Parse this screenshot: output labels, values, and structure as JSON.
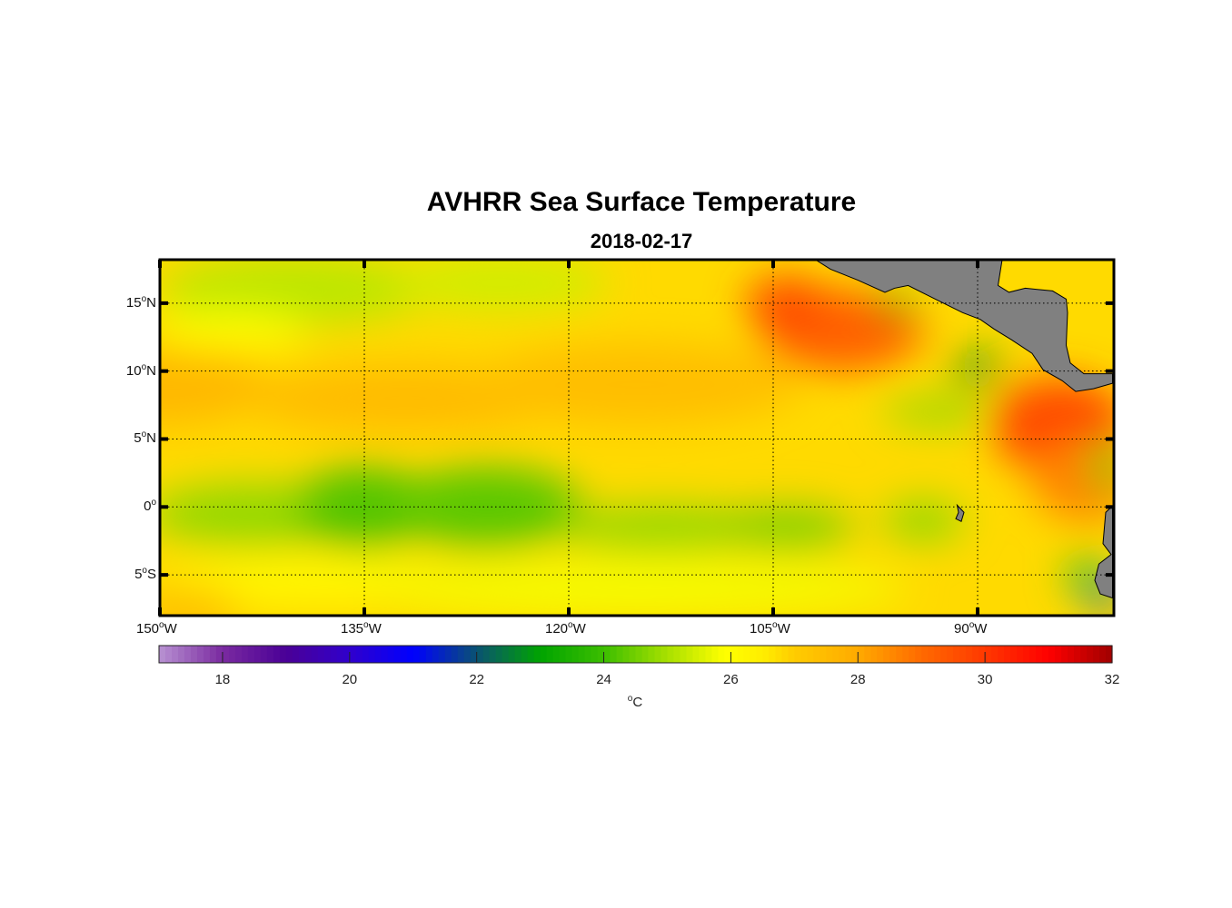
{
  "chart_data": {
    "type": "heatmap",
    "title": "AVHRR Sea Surface Temperature",
    "subtitle": "2018-02-17",
    "lon_range": [
      -150,
      -80
    ],
    "lat_range": [
      -8,
      18.2
    ],
    "lat_ticks": [
      {
        "value": 15,
        "num": "15",
        "hemi": "N"
      },
      {
        "value": 10,
        "num": "10",
        "hemi": "N"
      },
      {
        "value": 5,
        "num": "5",
        "hemi": "N"
      },
      {
        "value": 0,
        "num": "0",
        "hemi": ""
      },
      {
        "value": -5,
        "num": "5",
        "hemi": "S"
      }
    ],
    "lon_ticks": [
      {
        "value": -150,
        "num": "150",
        "hemi": "W"
      },
      {
        "value": -135,
        "num": "135",
        "hemi": "W"
      },
      {
        "value": -120,
        "num": "120",
        "hemi": "W"
      },
      {
        "value": -105,
        "num": "105",
        "hemi": "W"
      },
      {
        "value": -90,
        "num": "90",
        "hemi": "W"
      }
    ],
    "grid": true,
    "colorbar": {
      "range": [
        17,
        32
      ],
      "ticks": [
        "18",
        "20",
        "22",
        "24",
        "26",
        "28",
        "30",
        "32"
      ],
      "unit_symbol": "o",
      "unit": "C",
      "placement": "bottom"
    },
    "colormap": [
      [
        17,
        "#b892d2"
      ],
      [
        18,
        "#7a2aa0"
      ],
      [
        19,
        "#4a0096"
      ],
      [
        20,
        "#3000cc"
      ],
      [
        21,
        "#0000ff"
      ],
      [
        22,
        "#0a5272"
      ],
      [
        23,
        "#00a400"
      ],
      [
        24,
        "#3cbe00"
      ],
      [
        25,
        "#a8e000"
      ],
      [
        25.9,
        "#ffff00"
      ],
      [
        26.5,
        "#ffee00"
      ],
      [
        27,
        "#ffcc00"
      ],
      [
        28,
        "#ffaa00"
      ],
      [
        29,
        "#ff6a00"
      ],
      [
        30,
        "#ff3800"
      ],
      [
        31,
        "#ff0000"
      ],
      [
        32,
        "#a00000"
      ]
    ],
    "background_sst": 26.8,
    "sst_features": [
      {
        "lon": -150,
        "lat": 9,
        "rlon": 8,
        "rlat": 3,
        "temp": 27.6
      },
      {
        "lon": -132,
        "lat": 8,
        "rlon": 12,
        "rlat": 2.5,
        "temp": 27.5
      },
      {
        "lon": -115,
        "lat": 9,
        "rlon": 12,
        "rlat": 3,
        "temp": 27.4
      },
      {
        "lon": -100,
        "lat": 13,
        "rlon": 6,
        "rlat": 3,
        "temp": 29.2
      },
      {
        "lon": -104,
        "lat": 15,
        "rlon": 3,
        "rlat": 2,
        "temp": 29.6
      },
      {
        "lon": -84,
        "lat": 6,
        "rlon": 5,
        "rlat": 3.5,
        "temp": 29.6
      },
      {
        "lon": -82,
        "lat": 2,
        "rlon": 4,
        "rlat": 3,
        "temp": 28.6
      },
      {
        "lon": -140,
        "lat": 16,
        "rlon": 10,
        "rlat": 2.5,
        "temp": 25.2
      },
      {
        "lon": -125,
        "lat": 16.5,
        "rlon": 8,
        "rlat": 2,
        "temp": 25.4
      },
      {
        "lon": -145,
        "lat": 13,
        "rlon": 6,
        "rlat": 1.5,
        "temp": 26
      },
      {
        "lon": -143,
        "lat": -0.5,
        "rlon": 8,
        "rlat": 2.2,
        "temp": 24.8
      },
      {
        "lon": -135,
        "lat": 0,
        "rlon": 5,
        "rlat": 3,
        "temp": 24.2
      },
      {
        "lon": -126,
        "lat": 0,
        "rlon": 7,
        "rlat": 3,
        "temp": 24.3
      },
      {
        "lon": -113,
        "lat": -1.5,
        "rlon": 8,
        "rlat": 1.6,
        "temp": 24.8
      },
      {
        "lon": -104,
        "lat": -1.5,
        "rlon": 5,
        "rlat": 1.5,
        "temp": 24.6
      },
      {
        "lon": -94,
        "lat": -1,
        "rlon": 3,
        "rlat": 1.5,
        "temp": 24.8
      },
      {
        "lon": -138,
        "lat": -5.5,
        "rlon": 12,
        "rlat": 1.5,
        "temp": 26
      },
      {
        "lon": -115,
        "lat": -6,
        "rlon": 20,
        "rlat": 2,
        "temp": 25.8
      },
      {
        "lon": -148,
        "lat": -7.5,
        "rlon": 4,
        "rlat": 1.5,
        "temp": 27.6
      },
      {
        "lon": -96,
        "lat": 15,
        "rlon": 1.2,
        "rlat": 0.9,
        "temp": 23.6
      },
      {
        "lon": -90,
        "lat": 10.2,
        "rlon": 2,
        "rlat": 0.9,
        "temp": 22.8
      },
      {
        "lon": -93,
        "lat": 7,
        "rlon": 4,
        "rlat": 1,
        "temp": 24.8
      },
      {
        "lon": -80.8,
        "lat": -6.5,
        "rlon": 1.2,
        "rlat": 1,
        "temp": 21.6
      },
      {
        "lon": -82,
        "lat": -5,
        "rlon": 1.5,
        "rlat": 1.5,
        "temp": 24.2
      },
      {
        "lon": -80.5,
        "lat": 3,
        "rlon": 1,
        "rlat": 2,
        "temp": 24.5
      }
    ],
    "land": [
      [
        [
          -101.9,
          18.2
        ],
        [
          -100.8,
          17.5
        ],
        [
          -98.8,
          16.7
        ],
        [
          -96.8,
          15.8
        ],
        [
          -96.1,
          16.1
        ],
        [
          -95.1,
          16.3
        ],
        [
          -93.1,
          15.3
        ],
        [
          -91.1,
          14.3
        ],
        [
          -89.8,
          13.8
        ],
        [
          -88.8,
          13.1
        ],
        [
          -87.5,
          12.3
        ],
        [
          -86,
          11.3
        ],
        [
          -85.2,
          10.1
        ],
        [
          -83.8,
          9.3
        ],
        [
          -82.8,
          8.5
        ],
        [
          -81.5,
          8.7
        ],
        [
          -80.1,
          9.1
        ],
        [
          -80.1,
          9.8
        ],
        [
          -82.2,
          9.8
        ],
        [
          -83.2,
          10.6
        ],
        [
          -83.5,
          11.9
        ],
        [
          -83.4,
          14.3
        ],
        [
          -83.5,
          15.3
        ],
        [
          -84.5,
          15.9
        ],
        [
          -86.5,
          16.1
        ],
        [
          -87.7,
          15.8
        ],
        [
          -88.5,
          16.3
        ],
        [
          -88.2,
          18.2
        ]
      ],
      [
        [
          -80.1,
          0.07
        ],
        [
          -80.6,
          -0.4
        ],
        [
          -80.8,
          -2.7
        ],
        [
          -80.2,
          -3.5
        ],
        [
          -81.1,
          -4.2
        ],
        [
          -81.4,
          -5.4
        ],
        [
          -81,
          -6.4
        ],
        [
          -80.1,
          -6.7
        ]
      ],
      [
        [
          -91.5,
          0.13
        ],
        [
          -91,
          -0.4
        ],
        [
          -91.2,
          -1.07
        ],
        [
          -91.6,
          -0.87
        ],
        [
          -91.4,
          -0.4
        ]
      ]
    ],
    "land_color": "#808080"
  }
}
